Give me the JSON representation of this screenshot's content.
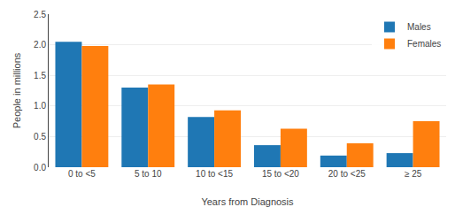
{
  "chart_data": {
    "type": "bar",
    "categories": [
      "0 to <5",
      "5 to 10",
      "10 to <15",
      "15 to <20",
      "20 to <25",
      "≥ 25"
    ],
    "series": [
      {
        "name": "Males",
        "values": [
          2.05,
          1.3,
          0.82,
          0.36,
          0.19,
          0.23
        ]
      },
      {
        "name": "Females",
        "values": [
          1.98,
          1.35,
          0.93,
          0.63,
          0.39,
          0.75
        ]
      }
    ],
    "xlabel": "Years from Diagnosis",
    "ylabel": "People in millions",
    "ylim": [
      0,
      2.5
    ],
    "yticks": [
      {
        "value": 0,
        "label": "0.0"
      },
      0.5,
      {
        "value": 1,
        "label": "1.0"
      },
      1.5,
      {
        "value": 2,
        "label": "2.0"
      },
      2.5
    ],
    "grid": true,
    "legend": "upper right"
  }
}
